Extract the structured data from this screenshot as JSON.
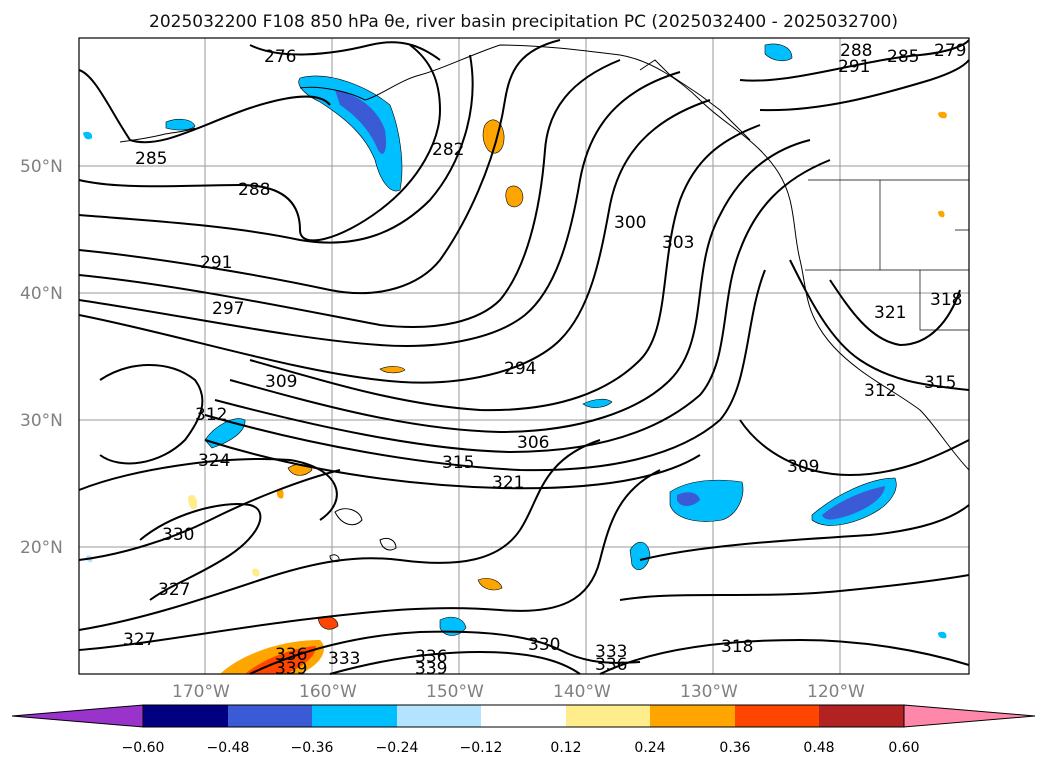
{
  "title": "2025032200 F108 850 hPa θe, river basin precipitation PC (2025032400 - 2025032700)",
  "map": {
    "lon_labels": [
      "170°W",
      "160°W",
      "150°W",
      "140°W",
      "130°W",
      "120°W"
    ],
    "lat_labels": [
      "50°N",
      "40°N",
      "30°N",
      "20°N"
    ],
    "contour_labels": [
      "276",
      "285",
      "288",
      "291",
      "297",
      "309",
      "312",
      "324",
      "330",
      "327",
      "327",
      "282",
      "300",
      "303",
      "294",
      "306",
      "315",
      "321",
      "336",
      "339",
      "333",
      "336",
      "339",
      "330",
      "333",
      "336",
      "318",
      "309",
      "321",
      "318",
      "315",
      "312",
      "288",
      "285",
      "279",
      "291"
    ]
  },
  "colorbar": {
    "colors": [
      "#9933cc",
      "#000080",
      "#3b5bd6",
      "#00bfff",
      "#b3e3ff",
      "#ffffff",
      "#ffec8b",
      "#ffa500",
      "#ff4500",
      "#b22222",
      "#ff88aa"
    ],
    "tick_labels": [
      "−0.60",
      "−0.48",
      "−0.36",
      "−0.24",
      "−0.12",
      "0.12",
      "0.24",
      "0.36",
      "0.48",
      "0.60"
    ]
  }
}
